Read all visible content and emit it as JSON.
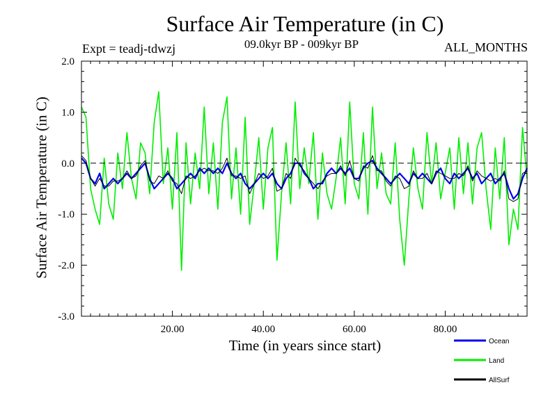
{
  "chart_data": {
    "type": "line",
    "title": "Surface Air Temperature (in C)",
    "subtitle": "09.0kyr BP - 009kyr BP",
    "experiment_label": "Expt = teadj-tdwzj",
    "period_label": "ALL_MONTHS",
    "xlabel": "Time (in years since start)",
    "ylabel": "Surface Air Temperature (in C)",
    "xlim": [
      0,
      98
    ],
    "ylim": [
      -3.0,
      2.0
    ],
    "x_ticks": [
      20,
      40,
      60,
      80
    ],
    "x_tick_labels": [
      "20.00",
      "40.00",
      "60.00",
      "80.00"
    ],
    "y_ticks": [
      2.0,
      1.0,
      0.0,
      -1.0,
      -2.0,
      -3.0
    ],
    "y_tick_labels": [
      "2.0",
      "1.0",
      "0.0",
      "-1.0",
      "-2.0",
      "-3.0"
    ],
    "reference_line": 0.0,
    "colors": {
      "Ocean": "#0000ee",
      "Land": "#00ee00",
      "AllSurf": "#000000"
    },
    "series": [
      {
        "name": "Land",
        "x": [
          0,
          1,
          2,
          3,
          4,
          5,
          6,
          7,
          8,
          9,
          10,
          11,
          12,
          13,
          14,
          15,
          16,
          17,
          18,
          19,
          20,
          21,
          22,
          23,
          24,
          25,
          26,
          27,
          28,
          29,
          30,
          31,
          32,
          33,
          34,
          35,
          36,
          37,
          38,
          39,
          40,
          41,
          42,
          43,
          44,
          45,
          46,
          47,
          48,
          49,
          50,
          51,
          52,
          53,
          54,
          55,
          56,
          57,
          58,
          59,
          60,
          61,
          62,
          63,
          64,
          65,
          66,
          67,
          68,
          69,
          70,
          71,
          72,
          73,
          74,
          75,
          76,
          77,
          78,
          79,
          80,
          81,
          82,
          83,
          84,
          85,
          86,
          87,
          88,
          89,
          90,
          91,
          92,
          93,
          94,
          95,
          96,
          97,
          98
        ],
        "values": [
          1.1,
          0.9,
          -0.5,
          -0.9,
          -1.2,
          0.1,
          -0.8,
          -1.1,
          0.2,
          -0.5,
          0.6,
          -0.3,
          -0.7,
          0.4,
          0.2,
          -0.6,
          0.8,
          1.4,
          -0.4,
          0.3,
          -0.9,
          0.6,
          -2.1,
          0.4,
          -0.8,
          0.2,
          -0.5,
          1.1,
          -0.6,
          0.4,
          -0.9,
          0.8,
          1.3,
          -0.7,
          0.3,
          -1.0,
          0.9,
          -1.2,
          -0.4,
          0.5,
          -0.9,
          0.3,
          0.7,
          -1.9,
          -0.6,
          0.4,
          -0.8,
          1.2,
          -0.5,
          0.3,
          -0.4,
          0.6,
          -1.1,
          0.2,
          -0.6,
          -0.9,
          -0.3,
          0.5,
          -0.8,
          1.2,
          -0.4,
          -0.7,
          0.6,
          -1.0,
          1.1,
          -0.5,
          0.2,
          -0.6,
          -0.8,
          0.4,
          -1.1,
          -2.0,
          -0.7,
          0.3,
          -0.5,
          -0.9,
          0.6,
          -0.4,
          0.4,
          -0.7,
          -0.2,
          0.3,
          -0.9,
          0.5,
          -0.6,
          0.4,
          -0.8,
          0.3,
          0.6,
          -0.5,
          -1.3,
          0.3,
          -0.7,
          0.5,
          -1.6,
          -0.9,
          -1.3,
          0.7,
          -0.3
        ]
      },
      {
        "name": "Ocean",
        "x": [
          0,
          1,
          2,
          3,
          4,
          5,
          6,
          7,
          8,
          9,
          10,
          11,
          12,
          13,
          14,
          15,
          16,
          17,
          18,
          19,
          20,
          21,
          22,
          23,
          24,
          25,
          26,
          27,
          28,
          29,
          30,
          31,
          32,
          33,
          34,
          35,
          36,
          37,
          38,
          39,
          40,
          41,
          42,
          43,
          44,
          45,
          46,
          47,
          48,
          49,
          50,
          51,
          52,
          53,
          54,
          55,
          56,
          57,
          58,
          59,
          60,
          61,
          62,
          63,
          64,
          65,
          66,
          67,
          68,
          69,
          70,
          71,
          72,
          73,
          74,
          75,
          76,
          77,
          78,
          79,
          80,
          81,
          82,
          83,
          84,
          85,
          86,
          87,
          88,
          89,
          90,
          91,
          92,
          93,
          94,
          95,
          96,
          97,
          98
        ],
        "values": [
          0.1,
          0.0,
          -0.3,
          -0.4,
          -0.2,
          -0.5,
          -0.4,
          -0.3,
          -0.4,
          -0.3,
          -0.2,
          -0.3,
          -0.2,
          -0.1,
          0.0,
          -0.3,
          -0.5,
          -0.4,
          -0.3,
          -0.2,
          -0.3,
          -0.5,
          -0.4,
          -0.3,
          -0.2,
          -0.3,
          -0.1,
          -0.2,
          -0.1,
          -0.2,
          -0.1,
          -0.2,
          0.0,
          -0.2,
          -0.3,
          -0.2,
          -0.4,
          -0.5,
          -0.4,
          -0.3,
          -0.2,
          -0.3,
          -0.2,
          -0.4,
          -0.5,
          -0.3,
          -0.2,
          0.0,
          0.0,
          -0.2,
          -0.3,
          -0.5,
          -0.4,
          -0.4,
          -0.2,
          -0.1,
          -0.2,
          -0.1,
          -0.2,
          -0.1,
          -0.3,
          -0.3,
          -0.1,
          0.0,
          0.05,
          -0.1,
          -0.2,
          -0.3,
          -0.4,
          -0.3,
          -0.2,
          -0.3,
          -0.4,
          -0.2,
          -0.3,
          -0.2,
          -0.3,
          -0.4,
          -0.2,
          -0.1,
          -0.3,
          -0.4,
          -0.2,
          -0.3,
          -0.2,
          -0.1,
          -0.3,
          -0.2,
          -0.4,
          -0.3,
          -0.2,
          -0.4,
          -0.3,
          -0.2,
          -0.5,
          -0.7,
          -0.6,
          -0.3,
          -0.1
        ]
      },
      {
        "name": "AllSurf",
        "x": [
          0,
          1,
          2,
          3,
          4,
          5,
          6,
          7,
          8,
          9,
          10,
          11,
          12,
          13,
          14,
          15,
          16,
          17,
          18,
          19,
          20,
          21,
          22,
          23,
          24,
          25,
          26,
          27,
          28,
          29,
          30,
          31,
          32,
          33,
          34,
          35,
          36,
          37,
          38,
          39,
          40,
          41,
          42,
          43,
          44,
          45,
          46,
          47,
          48,
          49,
          50,
          51,
          52,
          53,
          54,
          55,
          56,
          57,
          58,
          59,
          60,
          61,
          62,
          63,
          64,
          65,
          66,
          67,
          68,
          69,
          70,
          71,
          72,
          73,
          74,
          75,
          76,
          77,
          78,
          79,
          80,
          81,
          82,
          83,
          84,
          85,
          86,
          87,
          88,
          89,
          90,
          91,
          92,
          93,
          94,
          95,
          96,
          97,
          98
        ],
        "values": [
          0.15,
          0.05,
          -0.3,
          -0.45,
          -0.3,
          -0.45,
          -0.45,
          -0.35,
          -0.35,
          -0.3,
          -0.15,
          -0.3,
          -0.25,
          -0.05,
          0.05,
          -0.35,
          -0.4,
          -0.25,
          -0.3,
          -0.15,
          -0.35,
          -0.4,
          -0.6,
          -0.25,
          -0.3,
          -0.25,
          -0.15,
          -0.1,
          -0.15,
          -0.15,
          -0.2,
          -0.1,
          0.1,
          -0.25,
          -0.25,
          -0.3,
          -0.25,
          -0.6,
          -0.4,
          -0.2,
          -0.3,
          -0.25,
          -0.1,
          -0.55,
          -0.5,
          -0.2,
          -0.3,
          0.1,
          -0.05,
          -0.15,
          -0.3,
          -0.4,
          -0.5,
          -0.35,
          -0.25,
          -0.2,
          -0.2,
          -0.05,
          -0.25,
          0.05,
          -0.3,
          -0.35,
          -0.05,
          -0.1,
          0.15,
          -0.15,
          -0.15,
          -0.35,
          -0.45,
          -0.25,
          -0.3,
          -0.5,
          -0.45,
          -0.15,
          -0.3,
          -0.3,
          -0.2,
          -0.4,
          -0.15,
          -0.2,
          -0.25,
          -0.3,
          -0.3,
          -0.2,
          -0.25,
          -0.05,
          -0.35,
          -0.15,
          -0.25,
          -0.3,
          -0.35,
          -0.3,
          -0.35,
          -0.15,
          -0.7,
          -0.75,
          -0.7,
          -0.2,
          -0.15
        ]
      }
    ],
    "legend": {
      "placement": "bottom-right",
      "entries": [
        "Ocean",
        "Land",
        "AllSurf"
      ]
    }
  }
}
